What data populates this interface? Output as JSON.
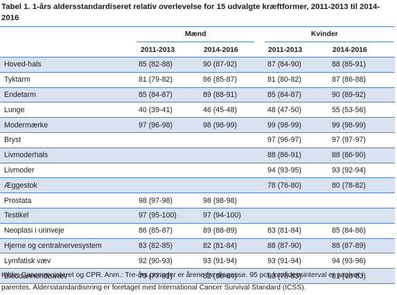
{
  "title": "Tabel 1. 1-års aldersstandardiseret relativ overlevelse for 15 udvalgte kræftformer, 2011-2013 til 2014-2016",
  "groups": {
    "men": "Mænd",
    "women": "Kvinder"
  },
  "column_headers": {
    "men_2011": "2011-2013",
    "men_2014": "2014-2016",
    "women_2011": "2011-2013",
    "women_2014": "2014-2016"
  },
  "rows": [
    {
      "name": "Hoved-hals",
      "m1": "85 (82-88)",
      "m2": "90 (87-92)",
      "w1": "87 (84-90)",
      "w2": "88 (85-91)"
    },
    {
      "name": "Tyktarm",
      "m1": "81 (79-82)",
      "m2": "86 (85-87)",
      "w1": "81 (80-82)",
      "w2": "87 (86-88)"
    },
    {
      "name": "Endetarm",
      "m1": "85 (84-87)",
      "m2": "89 (88-91)",
      "w1": "85 (84-87)",
      "w2": "90 (89-92)"
    },
    {
      "name": "Lunge",
      "m1": "40 (39-41)",
      "m2": "46 (45-48)",
      "w1": "48 (47-50)",
      "w2": "55 (53-56)"
    },
    {
      "name": "Modermærke",
      "m1": "97 (96-98)",
      "m2": "98 (98-99)",
      "w1": "99 (98-99)",
      "w2": "99 (98-99)"
    },
    {
      "name": "Bryst",
      "m1": "",
      "m2": "",
      "w1": "97 (96-97)",
      "w2": "97 (97-97)"
    },
    {
      "name": "Livmoderhals",
      "m1": "",
      "m2": "",
      "w1": "88 (86-91)",
      "w2": "88 (86-90)"
    },
    {
      "name": "Livmoder",
      "m1": "",
      "m2": "",
      "w1": "94 (93-95)",
      "w2": "93 (92-94)"
    },
    {
      "name": "Æggestok",
      "m1": "",
      "m2": "",
      "w1": "78 (76-80)",
      "w2": "80 (78-82)"
    },
    {
      "name": "Prostata",
      "m1": "98 (97-98)",
      "m2": "98 (98-98)",
      "w1": "",
      "w2": ""
    },
    {
      "name": "Testikel",
      "m1": "97 (95-100)",
      "m2": "97 (94-100)",
      "w1": "",
      "w2": ""
    },
    {
      "name": "Neoplasi i urinveje",
      "m1": "86 (85-87)",
      "m2": "89 (88-89)",
      "w1": "83 (81-84)",
      "w2": "85 (84-86)"
    },
    {
      "name": "Hjerne og centralnervesystem",
      "m1": "83 (82-85)",
      "m2": "82 (81-84)",
      "w1": "88 (87-90)",
      "w2": "88 (87-89)"
    },
    {
      "name": "Lymfatisk væv",
      "m1": "92 (90-93)",
      "m2": "93 (91-94)",
      "w1": "93 (91-94)",
      "w2": "94 (93-96)"
    },
    {
      "name": "Bloddannende væv",
      "m1": "79 (77-81)",
      "m2": "82 (80-84)",
      "w1": "80 (78-83)",
      "w2": "81 (78-83)"
    }
  ],
  "footer": "Kilde: Cancerregisteret og CPR. Anm.: Tre-års perioder er årene for diagnose. 95 pct. konfidensinterval er angivet i parentes. Aldersstandardisering er foretaget med International Cancer Survival Standard (ICSS).",
  "colors": {
    "rule": "#4f81bd",
    "shade": "#d9e2f0"
  }
}
